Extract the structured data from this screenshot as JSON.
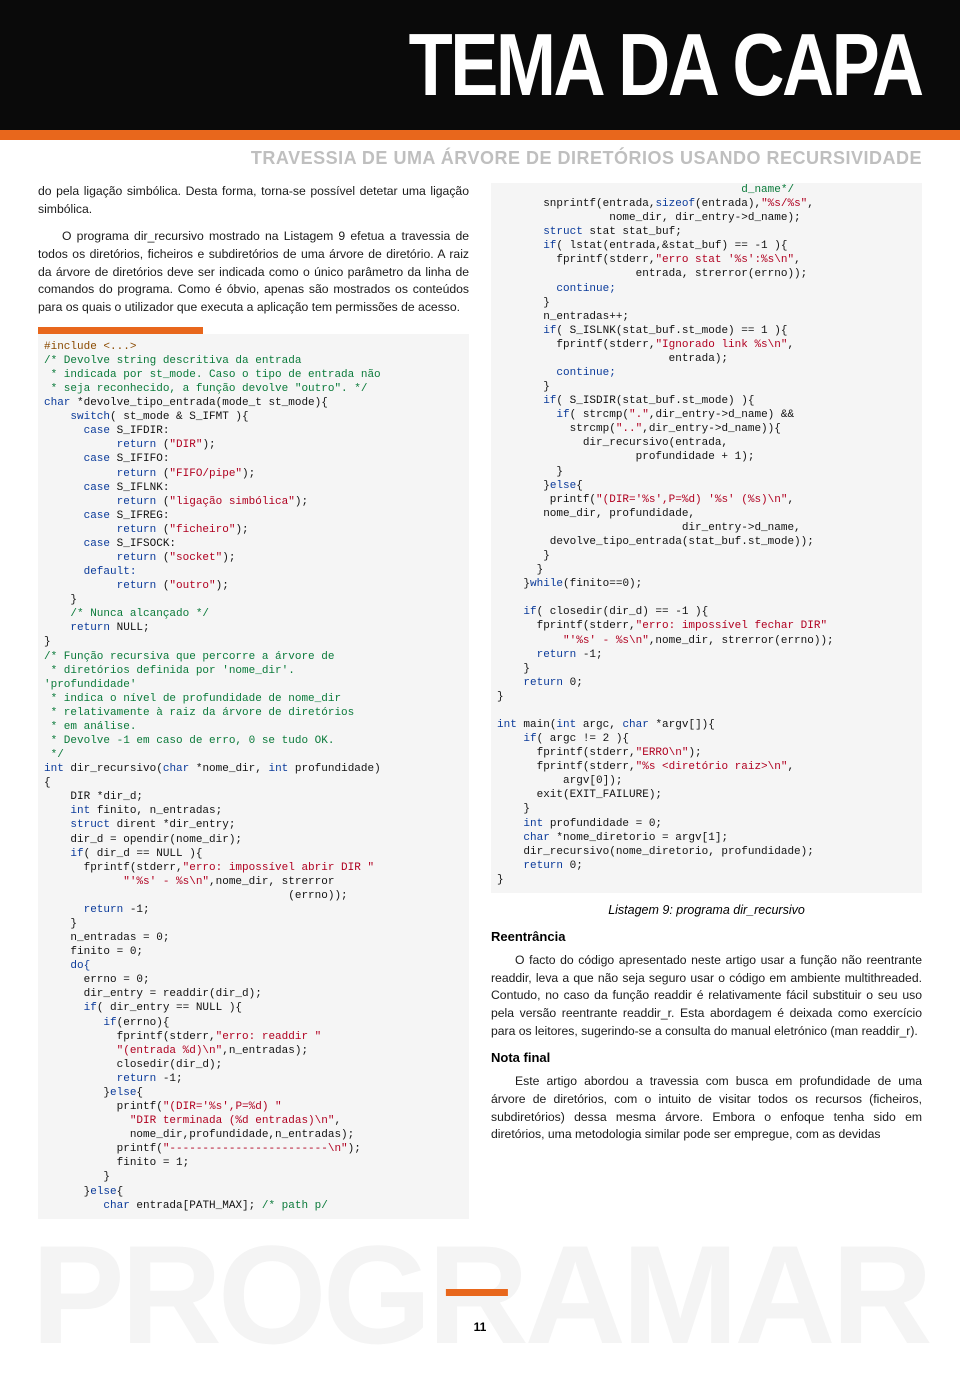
{
  "header": {
    "title": "TEMA DA CAPA",
    "subtitle": "TRAVESSIA DE UMA ÁRVORE DE DIRETÓRIOS USANDO RECURSIVIDADE"
  },
  "colors": {
    "accent": "#e8671c",
    "header_bg": "#0a0a0a",
    "subtitle": "#bfbfbf",
    "code_bg": "#f5f5f5",
    "code_keyword": "#0a3a9a",
    "code_comment": "#0a7a3a",
    "code_string": "#b00020",
    "code_preproc": "#8a4a00"
  },
  "left": {
    "p1": "do pela ligação simbólica. Desta forma, torna-se possível detetar uma ligação simbólica.",
    "p2": "O programa dir_recursivo mostrado na Listagem 9 efetua a travessia de todos os diretórios, ficheiros e subdiretórios de uma árvore de diretório. A raiz da árvore de diretórios deve ser indicada como o único parâmetro da linha de comandos do programa. Como é óbvio, apenas são mostrados os conteúdos para os quais o utilizador que executa a aplicação tem permissões de acesso."
  },
  "right": {
    "caption": "Listagem 9: programa dir_recursivo",
    "h1": "Reentrância",
    "p1": "O facto do código apresentado neste artigo usar a função não reentrante readdir, leva a que não seja seguro usar o código em ambiente multithreaded. Contudo, no caso da função readdir é relativamente fácil substituir o seu uso pela versão reentrante readdir_r. Esta abordagem é deixada como exercício para os leitores, sugerindo-se a consulta do manual eletrónico (man readdir_r).",
    "h2": "Nota final",
    "p2": "Este artigo abordou a travessia com busca em profundidade de uma árvore de diretórios, com o intuito de visitar todos os recursos (ficheiros, subdiretórios) dessa mesma árvore. Embora o enfoque tenha sido em diretórios, uma metodologia similar pode ser empregue, com as devidas"
  },
  "code_left": {
    "l01": "#include <...>",
    "l02": "/* Devolve string descritiva da entrada",
    "l03": " * indicada por st_mode. Caso o tipo de entrada não",
    "l04": " * seja reconhecido, a função devolve \"outro\". */",
    "l05a": "char",
    "l05b": " *devolve_tipo_entrada(mode_t st_mode){",
    "l06a": "    switch",
    "l06b": "( st_mode & S_IFMT ){",
    "l07a": "      case",
    "l07b": " S_IFDIR:",
    "l08a": "           return",
    "l08b": " (",
    "l08c": "\"DIR\"",
    "l08d": ");",
    "l09a": "      case",
    "l09b": " S_IFIFO:",
    "l10a": "           return",
    "l10b": " (",
    "l10c": "\"FIFO/pipe\"",
    "l10d": ");",
    "l11a": "      case",
    "l11b": " S_IFLNK:",
    "l12a": "           return",
    "l12b": " (",
    "l12c": "\"ligação simbólica\"",
    "l12d": ");",
    "l13a": "      case",
    "l13b": " S_IFREG:",
    "l14a": "           return",
    "l14b": " (",
    "l14c": "\"ficheiro\"",
    "l14d": ");",
    "l15a": "      case",
    "l15b": " S_IFSOCK:",
    "l16a": "           return",
    "l16b": " (",
    "l16c": "\"socket\"",
    "l16d": ");",
    "l17": "      default:",
    "l18a": "           return",
    "l18b": " (",
    "l18c": "\"outro\"",
    "l18d": ");",
    "l19": "    }",
    "l20": "    /* Nunca alcançado */",
    "l21a": "    return",
    "l21b": " NULL;",
    "l22": "}",
    "l23": "/* Função recursiva que percorre a árvore de",
    "l24": " * diretórios definida por 'nome_dir'.",
    "l25": "'profundidade'",
    "l26": " * indica o nível de profundidade de nome_dir",
    "l27": " * relativamente à raiz da árvore de diretórios",
    "l28": " * em análise.",
    "l29": " * Devolve -1 em caso de erro, 0 se tudo OK.",
    "l30": " */",
    "l31a": "int",
    "l31b": " dir_recursivo(",
    "l31c": "char",
    "l31d": " *nome_dir, ",
    "l31e": "int",
    "l31f": " profundidade)",
    "l32": "{",
    "l33": "    DIR *dir_d;",
    "l34a": "    int",
    "l34b": " finito, n_entradas;",
    "l35a": "    struct",
    "l35b": " dirent *dir_entry;",
    "l36": "    dir_d = opendir(nome_dir);",
    "l37a": "    if",
    "l37b": "( dir_d == NULL ){",
    "l38a": "      fprintf(stderr,",
    "l38b": "\"erro: impossível abrir DIR \"",
    "l39a": "            \"'%s' - %s\\n\"",
    "l39b": ",nome_dir, strerror",
    "l40": "                                     (errno));",
    "l41a": "      return",
    "l41b": " -1;",
    "l42": "    }",
    "l43": "    n_entradas = 0;",
    "l44": "    finito = 0;",
    "l45": "    do{",
    "l46": "      errno = 0;",
    "l47": "      dir_entry = readdir(dir_d);",
    "l48a": "      if",
    "l48b": "( dir_entry == NULL ){",
    "l49a": "         if",
    "l49b": "(errno){",
    "l50a": "           fprintf(stderr,",
    "l50b": "\"erro: readdir \"",
    "l51a": "           \"(entrada %d)\\n\"",
    "l51b": ",n_entradas);",
    "l52": "           closedir(dir_d);",
    "l53a": "           return",
    "l53b": " -1;",
    "l54a": "         }",
    "l54b": "else",
    "l54c": "{",
    "l55a": "           printf(",
    "l55b": "\"(DIR='%s',P=%d) \"",
    "l56a": "             \"DIR terminada (%d entradas)\\n\"",
    "l56b": ",",
    "l57": "             nome_dir,profundidade,n_entradas);",
    "l58a": "           printf(",
    "l58b": "\"------------------------\\n\"",
    "l58c": ");",
    "l59": "           finito = 1;",
    "l60": "         }",
    "l61a": "      }",
    "l61b": "else",
    "l61c": "{",
    "l62a": "         char",
    "l62b": " entrada[PATH_MAX]; ",
    "l62c": "/* path p/"
  },
  "code_right": {
    "r01": "                                     d_name*/",
    "r02a": "       snprintf(entrada,",
    "r02b": "sizeof",
    "r02c": "(entrada),",
    "r02d": "\"%s/%s\"",
    "r02e": ",",
    "r03": "                 nome_dir, dir_entry->d_name);",
    "r04a": "       struct",
    "r04b": " stat stat_buf;",
    "r05a": "       if",
    "r05b": "( lstat(entrada,&stat_buf) == -1 ){",
    "r06a": "         fprintf(stderr,",
    "r06b": "\"erro stat '%s':%s\\n\"",
    "r06c": ",",
    "r07": "                     entrada, strerror(errno));",
    "r08": "         continue;",
    "r09": "       }",
    "r10": "       n_entradas++;",
    "r11a": "       if",
    "r11b": "( S_ISLNK(stat_buf.st_mode) == 1 ){",
    "r12a": "         fprintf(stderr,",
    "r12b": "\"Ignorado link %s\\n\"",
    "r12c": ",",
    "r13": "                          entrada);",
    "r14": "         continue;",
    "r15": "       }",
    "r16a": "       if",
    "r16b": "( S_ISDIR(stat_buf.st_mode) ){",
    "r17a": "         if",
    "r17b": "( strcmp(",
    "r17c": "\".\"",
    "r17d": ",dir_entry->d_name) &&",
    "r18a": "           strcmp(",
    "r18b": "\"..\"",
    "r18c": ",dir_entry->d_name)){",
    "r19": "             dir_recursivo(entrada,",
    "r20": "                     profundidade + 1);",
    "r21": "         }",
    "r22a": "       }",
    "r22b": "else",
    "r22c": "{",
    "r23a": "        printf(",
    "r23b": "\"(DIR='%s',P=%d) '%s' (%s)\\n\"",
    "r23c": ",",
    "r24": "       nome_dir, profundidade,",
    "r25": "                            dir_entry->d_name,",
    "r26": "        devolve_tipo_entrada(stat_buf.st_mode));",
    "r27": "       }",
    "r28": "      }",
    "r29a": "    }",
    "r29b": "while",
    "r29c": "(finito==0);",
    "r30": " ",
    "r31a": "    if",
    "r31b": "( closedir(dir_d) == -1 ){",
    "r32a": "      fprintf(stderr,",
    "r32b": "\"erro: impossível fechar DIR\"",
    "r33a": "          \"'%s' - %s\\n\"",
    "r33b": ",nome_dir, strerror(errno));",
    "r34a": "      return",
    "r34b": " -1;",
    "r35": "    }",
    "r36a": "    return",
    "r36b": " 0;",
    "r37": "}",
    "r38": " ",
    "r39a": "int",
    "r39b": " main(",
    "r39c": "int",
    "r39d": " argc, ",
    "r39e": "char",
    "r39f": " *argv[]){",
    "r40a": "    if",
    "r40b": "( argc != 2 ){",
    "r41a": "      fprintf(stderr,",
    "r41b": "\"ERRO\\n\"",
    "r41c": ");",
    "r42a": "      fprintf(stderr,",
    "r42b": "\"%s <diretório raiz>\\n\"",
    "r42c": ",",
    "r43": "          argv[0]);",
    "r44": "      exit(EXIT_FAILURE);",
    "r45": "    }",
    "r46a": "    int",
    "r46b": " profundidade = 0;",
    "r47a": "    char",
    "r47b": " *nome_diretorio = argv[1];",
    "r48": "    dir_recursivo(nome_diretorio, profundidade);",
    "r49a": "    return",
    "r49b": " 0;",
    "r50": "}"
  },
  "page_number": "11",
  "watermark": "PROGRAMAR"
}
